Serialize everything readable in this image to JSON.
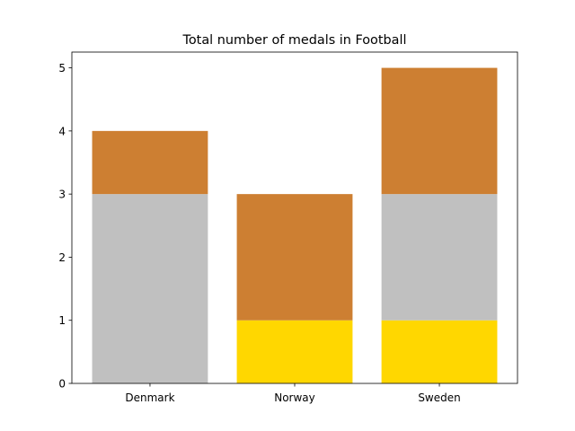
{
  "chart_data": {
    "type": "bar",
    "stacked": true,
    "title": "Total number of medals in Football",
    "xlabel": "",
    "ylabel": "",
    "categories": [
      "Denmark",
      "Norway",
      "Sweden"
    ],
    "series": [
      {
        "values": [
          0,
          1,
          1
        ],
        "color": "#FFD700"
      },
      {
        "values": [
          3,
          0,
          2
        ],
        "color": "#C0C0C0"
      },
      {
        "values": [
          1,
          2,
          2
        ],
        "color": "#CD7F32"
      }
    ],
    "ylim": [
      0,
      5.25
    ],
    "yticks": [
      0,
      1,
      2,
      3,
      4,
      5
    ],
    "grid": false,
    "legend": "none"
  }
}
